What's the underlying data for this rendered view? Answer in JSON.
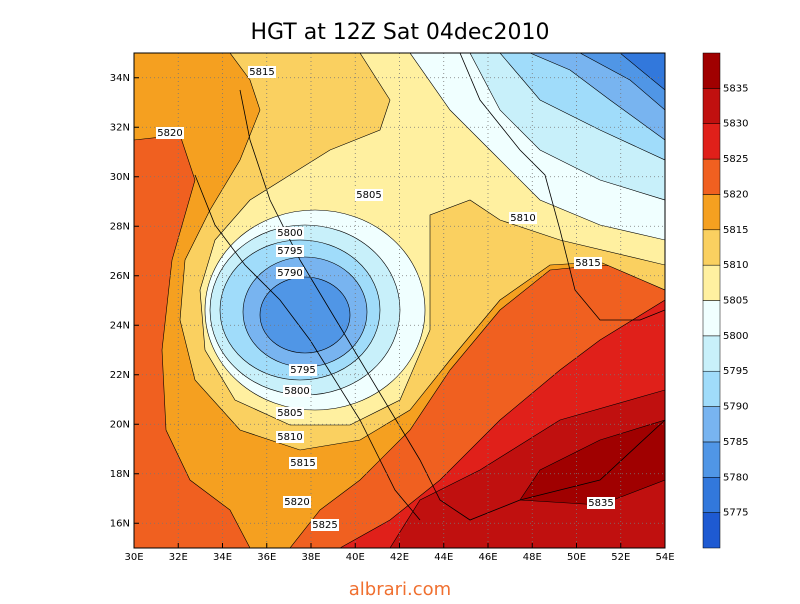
{
  "title": "HGT at 12Z Sat 04dec2010",
  "footer": "albrari.com",
  "map": {
    "xlim": [
      30,
      54
    ],
    "ylim": [
      15,
      35
    ],
    "grid": true,
    "xticks": [
      {
        "value": 30,
        "label": "30E"
      },
      {
        "value": 32,
        "label": "32E"
      },
      {
        "value": 34,
        "label": "34E"
      },
      {
        "value": 36,
        "label": "36E"
      },
      {
        "value": 38,
        "label": "38E"
      },
      {
        "value": 40,
        "label": "40E"
      },
      {
        "value": 42,
        "label": "42E"
      },
      {
        "value": 44,
        "label": "44E"
      },
      {
        "value": 46,
        "label": "46E"
      },
      {
        "value": 48,
        "label": "48E"
      },
      {
        "value": 50,
        "label": "50E"
      },
      {
        "value": 52,
        "label": "52E"
      },
      {
        "value": 54,
        "label": "54E"
      }
    ],
    "yticks": [
      {
        "value": 16,
        "label": "16N"
      },
      {
        "value": 18,
        "label": "18N"
      },
      {
        "value": 20,
        "label": "20N"
      },
      {
        "value": 22,
        "label": "22N"
      },
      {
        "value": 24,
        "label": "24N"
      },
      {
        "value": 26,
        "label": "26N"
      },
      {
        "value": 28,
        "label": "28N"
      },
      {
        "value": 30,
        "label": "30N"
      },
      {
        "value": 32,
        "label": "32N"
      },
      {
        "value": 34,
        "label": "34N"
      }
    ],
    "contour_labels": [
      5815,
      5820,
      5805,
      5800,
      5795,
      5790,
      5810,
      5815,
      5795,
      5800,
      5805,
      5810,
      5815,
      5820,
      5825,
      5835
    ]
  },
  "colorbar": {
    "levels": [
      5775,
      5780,
      5785,
      5790,
      5795,
      5800,
      5805,
      5810,
      5815,
      5820,
      5825,
      5830,
      5835
    ],
    "colors": [
      "#1e5ad2",
      "#3278dc",
      "#5096e6",
      "#78b4f0",
      "#a0dcfa",
      "#c8f0fa",
      "#f0ffff",
      "#fff0a0",
      "#fad060",
      "#f5a020",
      "#f06020",
      "#e0201a",
      "#c0100f",
      "#a00000"
    ]
  }
}
